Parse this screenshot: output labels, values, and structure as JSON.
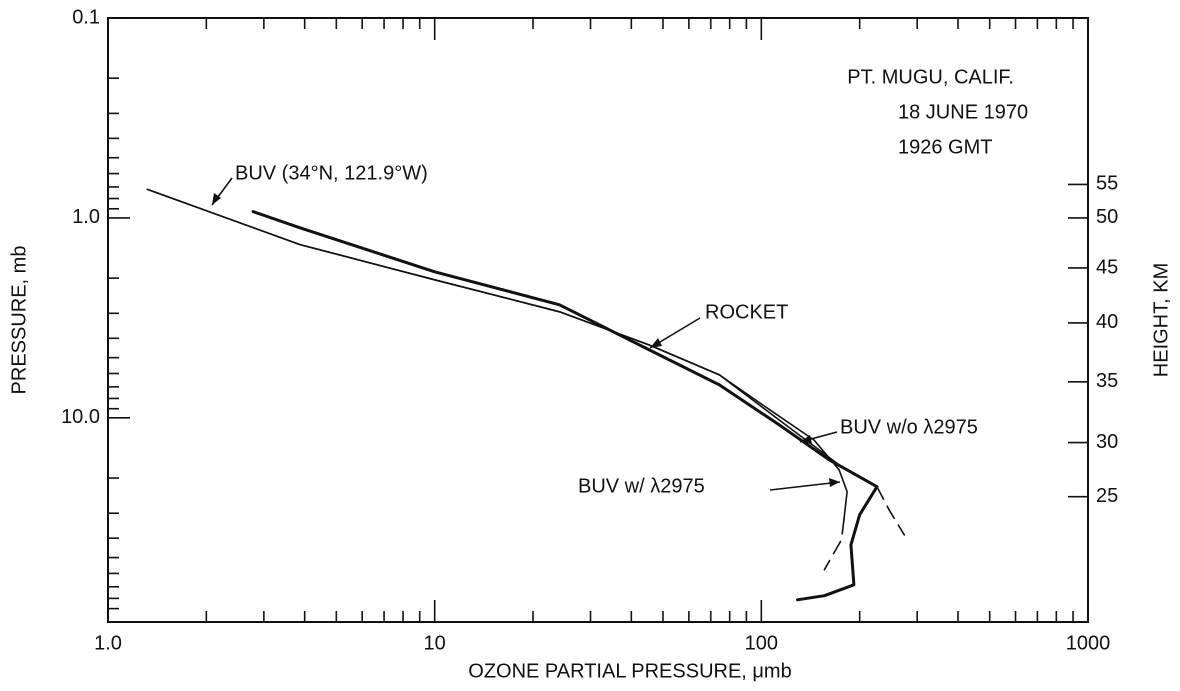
{
  "chart_data": {
    "type": "line",
    "xlabel": "OZONE PARTIAL PRESSURE, μmb",
    "ylabel": "PRESSURE, mb",
    "y2label": "HEIGHT, KM",
    "xlog": true,
    "ylog": true,
    "yinverted": true,
    "xlim": [
      1,
      1000
    ],
    "ylim": [
      0.1,
      105
    ],
    "xticks": [
      {
        "value": 1,
        "label": "1.0"
      },
      10,
      100,
      1000
    ],
    "xticks_minor": [
      2,
      3,
      4,
      5,
      6,
      7,
      8,
      9,
      20,
      30,
      40,
      50,
      60,
      70,
      80,
      90,
      200,
      300,
      400,
      500,
      600,
      700,
      800,
      900
    ],
    "yticks": [
      0.1,
      {
        "value": 1,
        "label": "1.0"
      },
      {
        "value": 10,
        "label": "10.0"
      }
    ],
    "yticks_minor": [
      0.2,
      0.3,
      0.4,
      0.5,
      0.6,
      0.7,
      0.8,
      0.9,
      2,
      3,
      4,
      5,
      6,
      7,
      8,
      9,
      20,
      30,
      40,
      50,
      60,
      70,
      80,
      90
    ],
    "y2ticks": [
      {
        "value": 55,
        "pressure": 0.68
      },
      {
        "value": 50,
        "pressure": 1.0
      },
      {
        "value": 45,
        "pressure": 1.78
      },
      {
        "value": 40,
        "pressure": 3.35
      },
      {
        "value": 35,
        "pressure": 6.6
      },
      {
        "value": 30,
        "pressure": 13.3
      },
      {
        "value": 25,
        "pressure": 24.8
      }
    ],
    "annotations": [
      "PT. MUGU, CALIF.",
      "18 JUNE 1970",
      "1926 GMT",
      "BUV (34°N, 121.9°W)",
      "ROCKET",
      "BUV w/o λ2975",
      "BUV w/ λ2975"
    ],
    "series": [
      {
        "name": "BUV w/o λ2975",
        "color": "#111",
        "width": 1.6,
        "style": "solid",
        "x": [
          1.32,
          3.87,
          10,
          24.1,
          45.4,
          74.4,
          113,
          173,
          226
        ],
        "values": [
          0.72,
          1.36,
          2.04,
          2.95,
          4.32,
          6.1,
          10.2,
          17.2,
          22.1
        ]
      },
      {
        "color": "#111",
        "width": 1.6,
        "style": "dashed",
        "x": [
          226,
          246,
          274
        ],
        "values": [
          22.1,
          28.8,
          38.5
        ]
      },
      {
        "name": "BUV w/ λ2975",
        "color": "#111",
        "width": 1.6,
        "style": "solid",
        "x": [
          1.32,
          3.87,
          10,
          24.1,
          45.4,
          74.4,
          106,
          145,
          173,
          183,
          179
        ],
        "values": [
          0.72,
          1.36,
          2.04,
          2.95,
          4.32,
          6.1,
          9.1,
          12.9,
          18.2,
          23.4,
          32.4
        ]
      },
      {
        "color": "#111",
        "width": 1.6,
        "style": "dashed",
        "x": [
          179,
          176,
          156
        ],
        "values": [
          32.4,
          40.7,
          57.5
        ]
      },
      {
        "name": "ROCKET",
        "color": "#111",
        "width": 3,
        "style": "solid",
        "x": [
          2.78,
          3.87,
          10,
          24.1,
          45.4,
          74.4,
          113,
          161,
          226,
          200,
          188,
          192,
          156,
          129
        ],
        "values": [
          0.93,
          1.12,
          1.86,
          2.72,
          4.57,
          6.84,
          10.8,
          16.2,
          22.1,
          30.5,
          43.2,
          68.4,
          77.6,
          81.3
        ]
      }
    ]
  }
}
